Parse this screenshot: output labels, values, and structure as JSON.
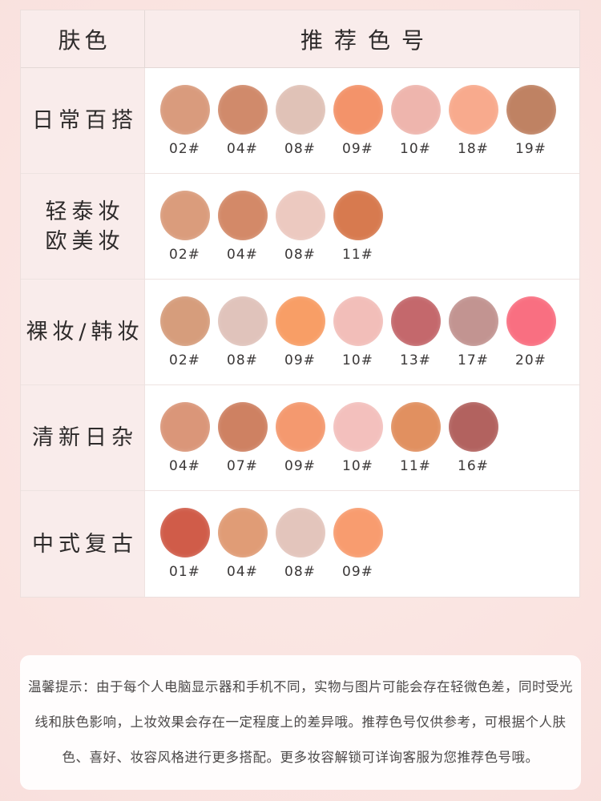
{
  "table": {
    "header": {
      "skin_tone": "肤色",
      "recommended_shades": "推荐色号"
    },
    "rows": [
      {
        "label_lines": [
          "日常百搭"
        ],
        "swatches": [
          {
            "code": "02#",
            "color": "#d99b7d"
          },
          {
            "code": "04#",
            "color": "#d08a6b"
          },
          {
            "code": "08#",
            "color": "#e0c2b7"
          },
          {
            "code": "09#",
            "color": "#f3936a"
          },
          {
            "code": "10#",
            "color": "#eeb5ad"
          },
          {
            "code": "18#",
            "color": "#f8aa8d"
          },
          {
            "code": "19#",
            "color": "#bf8263"
          }
        ]
      },
      {
        "label_lines": [
          "轻泰妆",
          "欧美妆"
        ],
        "swatches": [
          {
            "code": "02#",
            "color": "#da9c7c"
          },
          {
            "code": "04#",
            "color": "#d38968"
          },
          {
            "code": "08#",
            "color": "#ecc9c0"
          },
          {
            "code": "11#",
            "color": "#d77a4f"
          }
        ]
      },
      {
        "label_lines": [
          "裸妆/韩妆"
        ],
        "swatches": [
          {
            "code": "02#",
            "color": "#d69d7c"
          },
          {
            "code": "08#",
            "color": "#e0c3bb"
          },
          {
            "code": "09#",
            "color": "#f89e66"
          },
          {
            "code": "10#",
            "color": "#f2beb9"
          },
          {
            "code": "13#",
            "color": "#c4686c"
          },
          {
            "code": "17#",
            "color": "#c29491"
          },
          {
            "code": "20#",
            "color": "#f96f81"
          }
        ]
      },
      {
        "label_lines": [
          "清新日杂"
        ],
        "swatches": [
          {
            "code": "04#",
            "color": "#da9679"
          },
          {
            "code": "07#",
            "color": "#ce8162"
          },
          {
            "code": "09#",
            "color": "#f4996f"
          },
          {
            "code": "10#",
            "color": "#f3c0bd"
          },
          {
            "code": "11#",
            "color": "#e19060"
          },
          {
            "code": "16#",
            "color": "#b2625f"
          }
        ]
      },
      {
        "label_lines": [
          "中式复古"
        ],
        "swatches": [
          {
            "code": "01#",
            "color": "#d05c49"
          },
          {
            "code": "04#",
            "color": "#e09c76"
          },
          {
            "code": "08#",
            "color": "#e3c5bc"
          },
          {
            "code": "09#",
            "color": "#f89c6f"
          }
        ]
      }
    ]
  },
  "notice": {
    "lines": [
      "温馨提示：由于每个人电脑显示器和手机不同，实物与图片可能会存在轻微色差，同时受光",
      "线和肤色影响，上妆效果会存在一定程度上的差异哦。推荐色号仅供参考，可根据个人肤",
      "色、喜好、妆容风格进行更多搭配。更多妆容解锁可详询客服为您推荐色号哦。"
    ]
  },
  "colors": {
    "page_background": "#f8dedb",
    "cell_pink": "#f9eceb",
    "cell_white": "#ffffff",
    "divider": "#eee3e1",
    "text_dark": "#2e2b2b",
    "notice_text": "#4b4848"
  },
  "chart_data": {
    "type": "table",
    "title": "推荐色号",
    "columns": [
      "肤色",
      "推荐色号"
    ],
    "rows": [
      {
        "skin_tone": "日常百搭",
        "shades": [
          "02#",
          "04#",
          "08#",
          "09#",
          "10#",
          "18#",
          "19#"
        ]
      },
      {
        "skin_tone": "轻泰妆欧美妆",
        "shades": [
          "02#",
          "04#",
          "08#",
          "11#"
        ]
      },
      {
        "skin_tone": "裸妆/韩妆",
        "shades": [
          "02#",
          "08#",
          "09#",
          "10#",
          "13#",
          "17#",
          "20#"
        ]
      },
      {
        "skin_tone": "清新日杂",
        "shades": [
          "04#",
          "07#",
          "09#",
          "10#",
          "11#",
          "16#"
        ]
      },
      {
        "skin_tone": "中式复古",
        "shades": [
          "01#",
          "04#",
          "08#",
          "09#"
        ]
      }
    ]
  }
}
